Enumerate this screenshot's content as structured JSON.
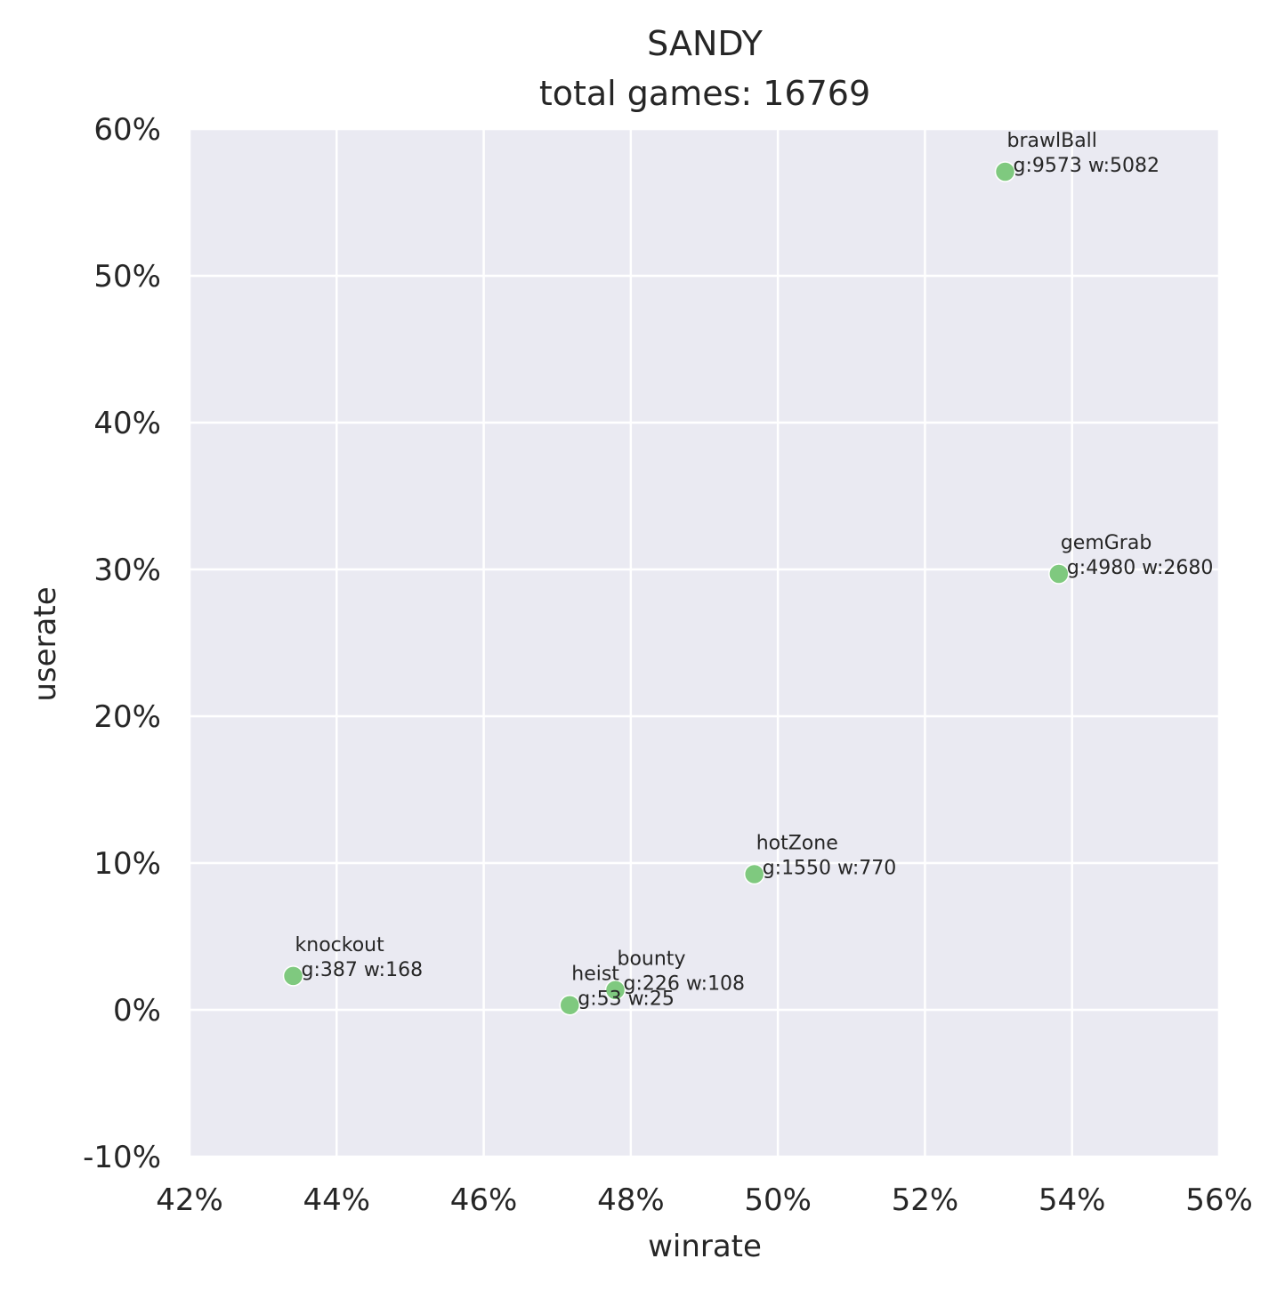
{
  "chart_data": {
    "type": "scatter",
    "title": "SANDY",
    "subtitle": "total games: 16769",
    "xlabel": "winrate",
    "ylabel": "userate",
    "xlim": [
      0.42,
      0.56
    ],
    "ylim": [
      -0.1,
      0.6
    ],
    "x_ticks": [
      0.42,
      0.44,
      0.46,
      0.48,
      0.5,
      0.52,
      0.54,
      0.56
    ],
    "x_tick_labels": [
      "42%",
      "44%",
      "46%",
      "48%",
      "50%",
      "52%",
      "54%",
      "56%"
    ],
    "y_ticks": [
      -0.1,
      0.0,
      0.1,
      0.2,
      0.3,
      0.4,
      0.5,
      0.6
    ],
    "y_tick_labels": [
      "-10%",
      "0%",
      "10%",
      "20%",
      "30%",
      "40%",
      "50%",
      "60%"
    ],
    "grid": true,
    "colors": {
      "background": "#eaeaf2",
      "grid": "#ffffff",
      "marker": "#7fc97f",
      "marker_edge": "#ffffff"
    },
    "points": [
      {
        "name": "brawlBall",
        "stats": "g:9573 w:5082",
        "x": 0.5309,
        "y": 0.5709
      },
      {
        "name": "gemGrab",
        "stats": "g:4980 w:2680",
        "x": 0.5382,
        "y": 0.297
      },
      {
        "name": "hotZone",
        "stats": "g:1550 w:770",
        "x": 0.4968,
        "y": 0.0924
      },
      {
        "name": "knockout",
        "stats": "g:387 w:168",
        "x": 0.4341,
        "y": 0.0231
      },
      {
        "name": "bounty",
        "stats": "g:226 w:108",
        "x": 0.4779,
        "y": 0.0135
      },
      {
        "name": "heist",
        "stats": "g:53 w:25",
        "x": 0.4717,
        "y": 0.0032
      }
    ]
  }
}
